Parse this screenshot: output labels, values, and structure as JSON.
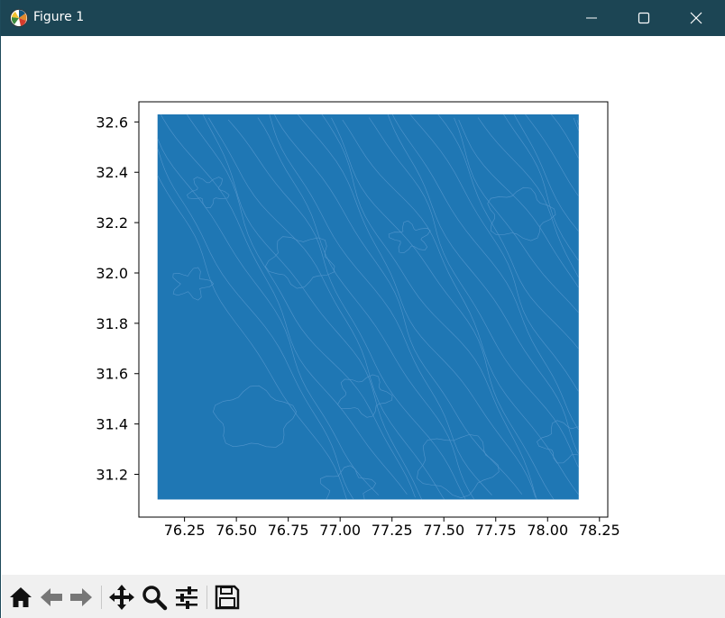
{
  "window": {
    "title": "Figure 1",
    "controls": [
      "minimize-icon",
      "maximize-icon",
      "close-icon"
    ]
  },
  "colors": {
    "titlebar": "#1c4554",
    "fill": "#1f77b4",
    "contour": "#5b9bd1",
    "toolbar": "#f0f0f0"
  },
  "toolbar": {
    "tools": [
      "home-icon",
      "back-arrow-icon",
      "forward-arrow-icon",
      "pan-move-icon",
      "zoom-magnifier-icon",
      "configure-subplots-icon",
      "save-disk-icon"
    ]
  },
  "chart_data": {
    "type": "heatmap",
    "title": "",
    "xlabel": "",
    "ylabel": "",
    "xlim": [
      76.03,
      78.29
    ],
    "ylim": [
      31.03,
      32.68
    ],
    "extent": [
      76.12,
      78.15,
      31.1,
      32.63
    ],
    "x_ticks": [
      "76.25",
      "76.50",
      "76.75",
      "77.00",
      "77.25",
      "77.50",
      "77.75",
      "78.00",
      "78.25"
    ],
    "x_tick_values": [
      76.25,
      76.5,
      76.75,
      77.0,
      77.25,
      77.5,
      77.75,
      78.0,
      78.25
    ],
    "y_ticks": [
      "31.2",
      "31.4",
      "31.6",
      "31.8",
      "32.0",
      "32.2",
      "32.4",
      "32.6"
    ],
    "y_tick_values": [
      31.2,
      31.4,
      31.6,
      31.8,
      32.0,
      32.2,
      32.4,
      32.6
    ],
    "grid": false,
    "fill_color": "#1f77b4",
    "boundary_color": "#5b9bd1"
  }
}
